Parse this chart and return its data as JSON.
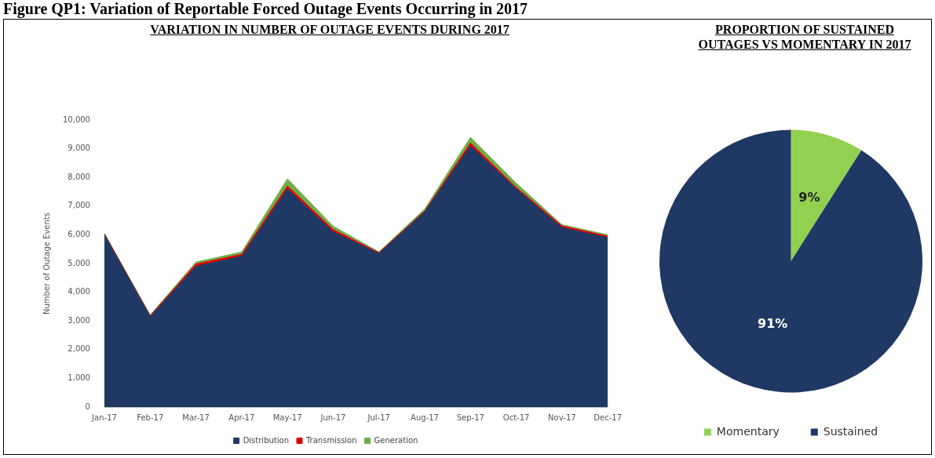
{
  "chart_data": [
    {
      "type": "area",
      "title": "VARIATION IN NUMBER OF OUTAGE EVENTS DURING 2017",
      "annotations": [
        "Figure QP1: Variation of Reportable Forced Outage Events Occurring in 2017"
      ],
      "ylabel": "Number of Outage Events",
      "categories": [
        "Jan-17",
        "Feb-17",
        "Mar-17",
        "Apr-17",
        "May-17",
        "Jun-17",
        "Jul-17",
        "Aug-17",
        "Sep-17",
        "Oct-17",
        "Nov-17",
        "Dec-17"
      ],
      "stacked": true,
      "ylim": [
        0,
        10000
      ],
      "yticks": [
        0,
        {
          "value": 1000,
          "label": "1,000"
        },
        {
          "value": 2000,
          "label": "2,000"
        },
        {
          "value": 3000,
          "label": "3,000"
        },
        {
          "value": 4000,
          "label": "4,000"
        },
        {
          "value": 5000,
          "label": "5,000"
        },
        {
          "value": 6000,
          "label": "6,000"
        },
        {
          "value": 7000,
          "label": "7,000"
        },
        {
          "value": 8000,
          "label": "8,000"
        },
        {
          "value": 9000,
          "label": "9,000"
        },
        {
          "value": 10000,
          "label": "10,000"
        }
      ],
      "grid": false,
      "legend": "bottom",
      "series": [
        {
          "name": "Distribution",
          "color": "#1f3864",
          "values": [
            6000,
            3150,
            4900,
            5250,
            7600,
            6100,
            5350,
            6800,
            9100,
            7600,
            6250,
            5900
          ]
        },
        {
          "name": "Transmission",
          "color": "#e00000",
          "values": [
            30,
            30,
            80,
            70,
            100,
            80,
            30,
            30,
            100,
            50,
            60,
            50
          ]
        },
        {
          "name": "Generation",
          "color": "#70ad47",
          "values": [
            20,
            20,
            70,
            80,
            250,
            120,
            20,
            70,
            200,
            150,
            40,
            50
          ]
        }
      ]
    },
    {
      "type": "pie",
      "title": "PROPORTION OF SUSTAINED OUTAGES VS MOMENTARY IN 2017",
      "categories": [
        "Momentary",
        "Sustained"
      ],
      "values": [
        9,
        91
      ],
      "colors": [
        "#92d050",
        "#1f3864"
      ],
      "value_labels": [
        "9%",
        "91%"
      ],
      "legend": "bottom"
    }
  ]
}
